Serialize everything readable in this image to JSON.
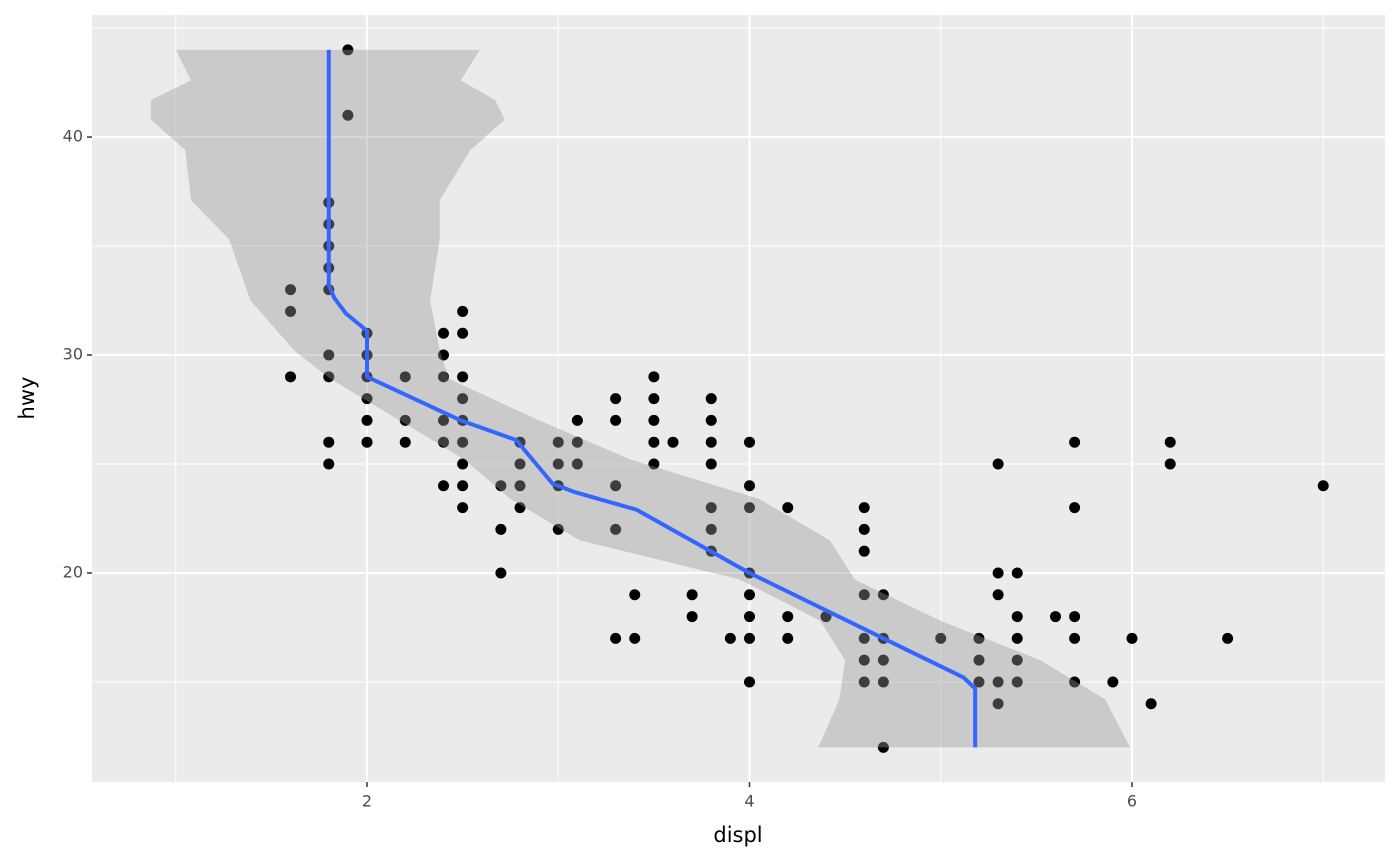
{
  "chart_data": {
    "type": "scatter",
    "x_label": "displ",
    "y_label": "hwy",
    "xlim": [
      0.562,
      7.323
    ],
    "ylim": [
      10.41,
      45.6
    ],
    "xticks": [
      2,
      4,
      6
    ],
    "yticks": [
      20,
      30,
      40
    ],
    "x_minor_ticks": [
      1,
      3,
      5,
      7
    ],
    "y_minor_ticks": [
      15,
      25,
      35,
      45
    ],
    "grid": true,
    "points": {
      "color": "#000000",
      "x": [
        1.6,
        1.6,
        1.6,
        1.8,
        1.8,
        1.8,
        1.8,
        1.8,
        1.8,
        1.8,
        1.8,
        1.8,
        1.9,
        1.9,
        2.0,
        2.0,
        2.0,
        2.0,
        2.0,
        2.0,
        2.2,
        2.2,
        2.2,
        2.4,
        2.4,
        2.4,
        2.4,
        2.4,
        2.4,
        2.5,
        2.5,
        2.5,
        2.5,
        2.5,
        2.5,
        2.5,
        2.5,
        2.5,
        2.7,
        2.7,
        2.7,
        2.8,
        2.8,
        2.8,
        2.8,
        3.0,
        3.0,
        3.0,
        3.0,
        3.1,
        3.1,
        3.1,
        3.3,
        3.3,
        3.3,
        3.3,
        3.3,
        3.4,
        3.4,
        3.5,
        3.5,
        3.5,
        3.5,
        3.5,
        3.6,
        3.7,
        3.7,
        3.8,
        3.8,
        3.8,
        3.8,
        3.8,
        3.8,
        3.8,
        3.9,
        4.0,
        4.0,
        4.0,
        4.0,
        4.0,
        4.0,
        4.0,
        4.0,
        4.2,
        4.2,
        4.2,
        4.4,
        4.6,
        4.6,
        4.6,
        4.6,
        4.6,
        4.6,
        4.6,
        4.7,
        4.7,
        4.7,
        4.7,
        4.7,
        5.0,
        5.2,
        5.2,
        5.2,
        5.3,
        5.3,
        5.3,
        5.3,
        5.3,
        5.4,
        5.4,
        5.4,
        5.4,
        5.4,
        5.6,
        5.7,
        5.7,
        5.7,
        5.7,
        5.7,
        5.9,
        6.0,
        6.1,
        6.2,
        6.2,
        6.5,
        7.0
      ],
      "y": [
        33,
        32,
        29,
        37,
        36,
        35,
        34,
        33,
        30,
        29,
        26,
        25,
        44,
        41,
        31,
        30,
        29,
        28,
        27,
        26,
        29,
        27,
        26,
        31,
        30,
        29,
        27,
        26,
        24,
        32,
        31,
        29,
        28,
        27,
        26,
        25,
        24,
        23,
        24,
        22,
        20,
        26,
        25,
        24,
        23,
        26,
        25,
        24,
        22,
        27,
        26,
        25,
        28,
        27,
        24,
        22,
        17,
        19,
        17,
        29,
        28,
        27,
        26,
        25,
        26,
        19,
        18,
        28,
        27,
        26,
        25,
        23,
        22,
        21,
        17,
        26,
        24,
        23,
        20,
        19,
        18,
        17,
        15,
        23,
        18,
        17,
        18,
        23,
        22,
        21,
        19,
        17,
        16,
        15,
        19,
        17,
        16,
        15,
        12,
        17,
        17,
        16,
        15,
        25,
        20,
        19,
        15,
        14,
        20,
        18,
        17,
        16,
        15,
        18,
        26,
        23,
        18,
        17,
        15,
        15,
        17,
        14,
        26,
        25,
        17,
        24
      ]
    },
    "ribbon": {
      "color": "#999999",
      "y": [
        44,
        42.6,
        41.7,
        40.8,
        39.4,
        37.1,
        35.3,
        32.5,
        30.2,
        28.9,
        27,
        25.2,
        23.4,
        21.5,
        19.7,
        17.8,
        16,
        14.2,
        12
      ],
      "xmin": [
        1.0,
        1.08,
        0.87,
        0.87,
        1.05,
        1.08,
        1.28,
        1.39,
        1.62,
        1.81,
        2.17,
        2.51,
        2.75,
        3.11,
        3.95,
        4.37,
        4.5,
        4.47,
        4.36
      ],
      "xmax": [
        2.59,
        2.49,
        2.67,
        2.72,
        2.54,
        2.38,
        2.38,
        2.33,
        2.38,
        2.43,
        2.9,
        3.38,
        4.05,
        4.42,
        4.55,
        5.0,
        5.52,
        5.86,
        5.99
      ]
    },
    "smooth": {
      "color": "#3366FF",
      "x": [
        1.8,
        1.8,
        1.83,
        1.89,
        1.96,
        2.0,
        2.0,
        2.49,
        2.78,
        2.97,
        3.09,
        3.41,
        4.0,
        4.63,
        5.12,
        5.18,
        5.18
      ],
      "y": [
        44,
        33.2,
        32.6,
        31.9,
        31.4,
        31.1,
        29,
        27,
        26.1,
        24.1,
        23.7,
        22.9,
        20,
        17.3,
        15.2,
        14.7,
        12
      ]
    }
  }
}
